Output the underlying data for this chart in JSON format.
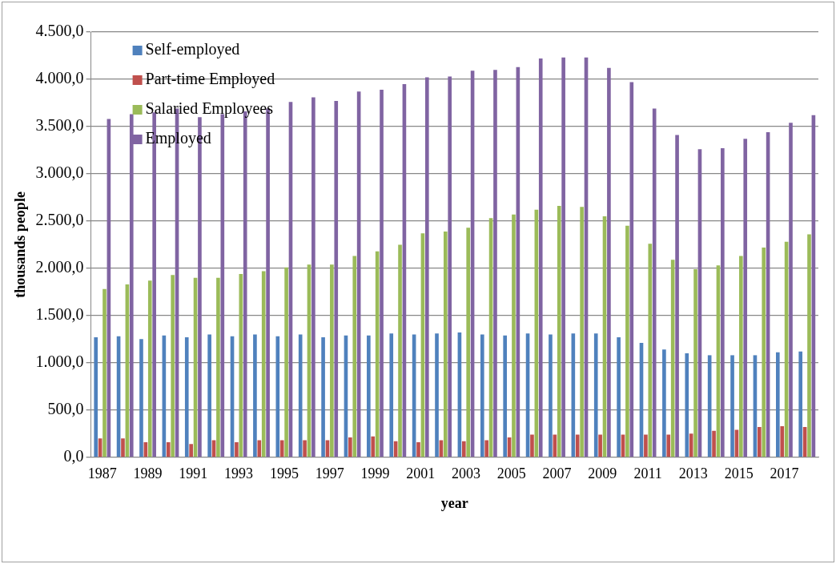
{
  "chart_data": {
    "type": "bar",
    "xlabel": "year",
    "ylabel": "thousands people",
    "categories": [
      "1987",
      null,
      "1989",
      null,
      "1991",
      null,
      "1993",
      null,
      "1995",
      null,
      "1997",
      null,
      "1999",
      null,
      "2001",
      null,
      "2003",
      null,
      "2005",
      null,
      "2007",
      null,
      "2009",
      null,
      "2011",
      null,
      "2013",
      null,
      "2015",
      null,
      "2017",
      null
    ],
    "series": [
      {
        "name": "Self-employed",
        "color": "#4f81bd",
        "values": [
          1270,
          1280,
          1250,
          1290,
          1270,
          1300,
          1280,
          1300,
          1280,
          1300,
          1270,
          1290,
          1290,
          1310,
          1300,
          1310,
          1320,
          1300,
          1290,
          1310,
          1300,
          1310,
          1310,
          1270,
          1210,
          1140,
          1100,
          1080,
          1080,
          1080,
          1110,
          1120
        ]
      },
      {
        "name": "Part-time Employed",
        "color": "#c0504d",
        "values": [
          200,
          200,
          160,
          160,
          140,
          180,
          160,
          180,
          180,
          180,
          180,
          210,
          220,
          170,
          160,
          180,
          170,
          180,
          210,
          240,
          240,
          240,
          240,
          240,
          240,
          240,
          250,
          280,
          290,
          320,
          330,
          320
        ]
      },
      {
        "name": "Salaried Employees",
        "color": "#9bbb59",
        "values": [
          1780,
          1830,
          1870,
          1930,
          1900,
          1900,
          1940,
          1970,
          2010,
          2040,
          2040,
          2130,
          2180,
          2250,
          2370,
          2390,
          2430,
          2530,
          2570,
          2620,
          2660,
          2650,
          2550,
          2450,
          2260,
          2090,
          1990,
          2030,
          2130,
          2220,
          2280,
          2360
        ]
      },
      {
        "name": "Employed",
        "color": "#8064a2",
        "values": [
          3580,
          3630,
          3650,
          3690,
          3600,
          3630,
          3660,
          3690,
          3760,
          3810,
          3770,
          3870,
          3890,
          3950,
          4020,
          4030,
          4090,
          4100,
          4130,
          4220,
          4230,
          4230,
          4120,
          3970,
          3690,
          3410,
          3260,
          3270,
          3370,
          3440,
          3540,
          3620
        ]
      }
    ],
    "ylim": [
      0,
      4500
    ],
    "yticks": [
      {
        "value": 0,
        "label": "0,0"
      },
      {
        "value": 500,
        "label": "500,0"
      },
      {
        "value": 1000,
        "label": "1.000,0"
      },
      {
        "value": 1500,
        "label": "1.500,0"
      },
      {
        "value": 2000,
        "label": "2.000,0"
      },
      {
        "value": 2500,
        "label": "2.500,0"
      },
      {
        "value": 3000,
        "label": "3.000,0"
      },
      {
        "value": 3500,
        "label": "3.500,0"
      },
      {
        "value": 4000,
        "label": "4.000,0"
      },
      {
        "value": 4500,
        "label": "4.500,0"
      }
    ],
    "grid": "y",
    "legend": "top left"
  }
}
